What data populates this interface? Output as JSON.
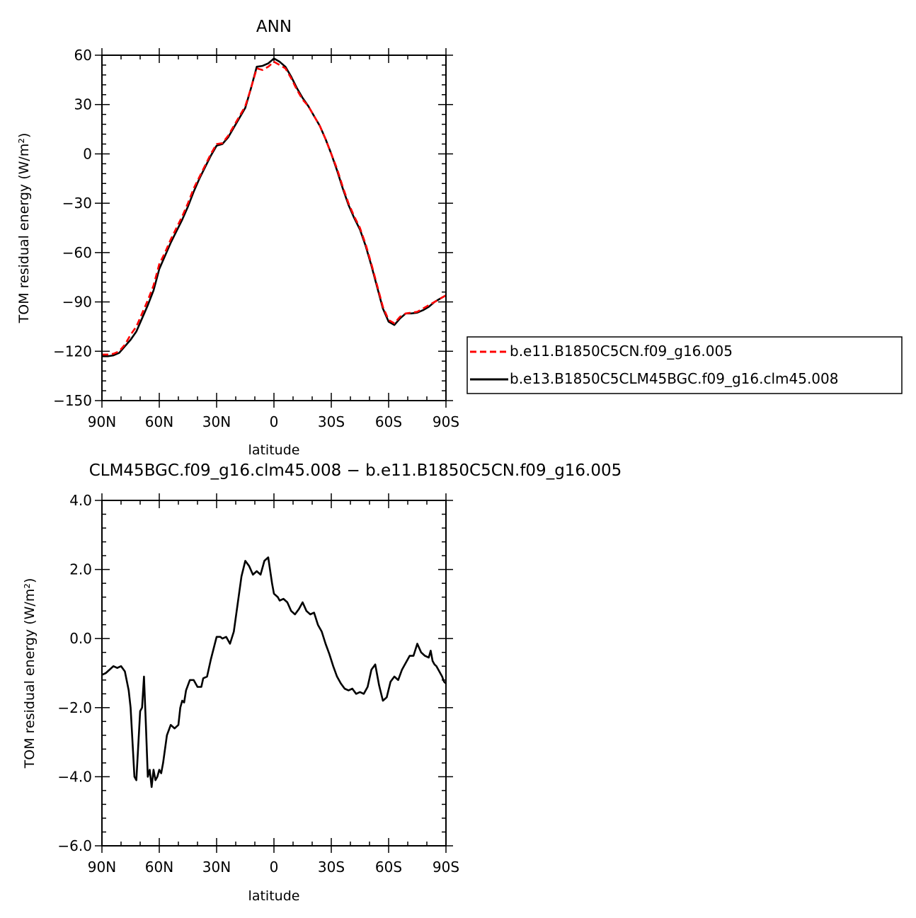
{
  "chart_data": [
    {
      "type": "line",
      "title": "ANN",
      "xlabel": "latitude",
      "ylabel": "TOM residual energy (W/m²)",
      "ylim": [
        -150,
        60
      ],
      "yticks": [
        "60",
        "30",
        "0",
        "−30",
        "−60",
        "−90",
        "−120",
        "−150"
      ],
      "ytick_values": [
        60,
        30,
        0,
        -30,
        -60,
        -90,
        -120,
        -150
      ],
      "xlim": [
        90,
        -90
      ],
      "xticks": [
        "90N",
        "60N",
        "30N",
        "0",
        "30S",
        "60S",
        "90S"
      ],
      "xtick_values": [
        90,
        60,
        30,
        0,
        -30,
        -60,
        -90
      ],
      "legend": [
        {
          "label": "b.e11.B1850C5CN.f09_g16.005",
          "color": "#ff0000",
          "dash": true
        },
        {
          "label": "b.e13.B1850C5CLM45BGC.f09_g16.clm45.008",
          "color": "#000000",
          "dash": false
        }
      ],
      "x": [
        90,
        87,
        84,
        81,
        78,
        75,
        72,
        69,
        66,
        63,
        60,
        57,
        54,
        51,
        48,
        45,
        42,
        39,
        36,
        33,
        30,
        27,
        24,
        21,
        18,
        15,
        12,
        9,
        6,
        3,
        0,
        -3,
        -6,
        -9,
        -12,
        -15,
        -18,
        -21,
        -24,
        -27,
        -30,
        -33,
        -36,
        -39,
        -42,
        -45,
        -48,
        -51,
        -54,
        -57,
        -60,
        -63,
        -66,
        -69,
        -72,
        -75,
        -78,
        -81,
        -84,
        -87,
        -90
      ],
      "series": [
        {
          "name": "b.e11.B1850C5CN.f09_g16.005",
          "color": "#ff0000",
          "dash": true,
          "values": [
            -122,
            -122,
            -121.5,
            -120,
            -116,
            -110,
            -105,
            -97,
            -89,
            -80,
            -67,
            -60,
            -52,
            -45,
            -38,
            -30,
            -21,
            -14,
            -7,
            0,
            6,
            6.5,
            11,
            17,
            23,
            29,
            40,
            52,
            51,
            53,
            56,
            54,
            52,
            46,
            39,
            33,
            29,
            23,
            17,
            9,
            0,
            -9,
            -20,
            -30,
            -38,
            -45,
            -55,
            -67,
            -80,
            -93,
            -101,
            -103,
            -99,
            -97,
            -96.5,
            -96,
            -94,
            -92,
            -90,
            -88,
            -86
          ]
        },
        {
          "name": "b.e13.B1850C5CLM45BGC.f09_g16.clm45.008",
          "color": "#000000",
          "dash": false,
          "values": [
            -123,
            -123,
            -122.5,
            -121,
            -117,
            -113,
            -108,
            -100,
            -92,
            -83,
            -70,
            -62,
            -54,
            -47,
            -40,
            -32,
            -23,
            -15,
            -8,
            -1,
            5,
            6,
            10,
            16,
            22,
            28,
            40,
            53,
            53.5,
            55,
            58,
            56,
            53,
            47,
            40,
            34,
            29,
            23,
            17,
            9,
            0,
            -10,
            -21,
            -31,
            -39,
            -46,
            -56,
            -68,
            -81,
            -94,
            -102,
            -104,
            -100,
            -97,
            -97,
            -96.5,
            -95,
            -93,
            -90,
            -88,
            -86
          ]
        }
      ]
    },
    {
      "type": "line",
      "title": "CLM45BGC.f09_g16.clm45.008 − b.e11.B1850C5CN.f09_g16.005",
      "xlabel": "latitude",
      "ylabel": "TOM residual energy (W/m²)",
      "ylim": [
        -6.0,
        4.0
      ],
      "yticks": [
        "4.0",
        "2.0",
        "0.0",
        "−2.0",
        "−4.0",
        "−6.0"
      ],
      "ytick_values": [
        4,
        2,
        0,
        -2,
        -4,
        -6
      ],
      "xlim": [
        90,
        -90
      ],
      "xticks": [
        "90N",
        "60N",
        "30N",
        "0",
        "30S",
        "60S",
        "90S"
      ],
      "xtick_values": [
        90,
        60,
        30,
        0,
        -30,
        -60,
        -90
      ],
      "x": [
        90,
        88,
        86,
        84,
        82,
        80,
        78,
        76,
        75,
        73,
        72,
        70,
        69,
        68,
        67,
        66,
        65,
        64,
        63,
        62,
        61,
        60,
        59,
        58,
        56,
        54,
        52,
        50,
        49,
        48,
        47,
        46,
        44,
        42,
        40,
        38,
        37,
        35,
        33,
        30,
        28,
        27,
        25,
        23,
        21,
        19,
        17,
        15,
        13,
        11,
        9,
        7,
        5,
        3,
        1,
        0,
        -2,
        -3,
        -5,
        -7,
        -9,
        -11,
        -13,
        -15,
        -17,
        -19,
        -21,
        -23,
        -25,
        -27,
        -29,
        -31,
        -33,
        -35,
        -37,
        -39,
        -41,
        -43,
        -45,
        -47,
        -49,
        -51,
        -53,
        -55,
        -57,
        -59,
        -61,
        -63,
        -65,
        -67,
        -69,
        -71,
        -73,
        -75,
        -77,
        -79,
        -81,
        -82,
        -83,
        -84,
        -85,
        -86,
        -87,
        -88,
        -89,
        -90
      ],
      "series": [
        {
          "name": "",
          "color": "#000000",
          "dash": false,
          "values": [
            -1.05,
            -1.0,
            -0.9,
            -0.8,
            -0.85,
            -0.8,
            -0.95,
            -1.5,
            -2.0,
            -4.0,
            -4.1,
            -2.1,
            -2.0,
            -1.1,
            -2.5,
            -4.0,
            -3.8,
            -4.3,
            -3.8,
            -4.1,
            -4.0,
            -3.8,
            -3.9,
            -3.6,
            -2.8,
            -2.5,
            -2.6,
            -2.5,
            -2.0,
            -1.8,
            -1.85,
            -1.5,
            -1.2,
            -1.2,
            -1.4,
            -1.4,
            -1.15,
            -1.1,
            -0.6,
            0.05,
            0.05,
            0.0,
            0.05,
            -0.15,
            0.2,
            1.0,
            1.8,
            2.25,
            2.1,
            1.85,
            1.95,
            1.85,
            2.25,
            2.35,
            1.6,
            1.3,
            1.2,
            1.1,
            1.15,
            1.05,
            0.8,
            0.7,
            0.85,
            1.05,
            0.8,
            0.7,
            0.75,
            0.4,
            0.2,
            -0.15,
            -0.45,
            -0.8,
            -1.1,
            -1.3,
            -1.45,
            -1.5,
            -1.45,
            -1.6,
            -1.55,
            -1.6,
            -1.4,
            -0.9,
            -0.75,
            -1.35,
            -1.8,
            -1.7,
            -1.25,
            -1.1,
            -1.2,
            -0.9,
            -0.7,
            -0.5,
            -0.5,
            -0.15,
            -0.4,
            -0.5,
            -0.55,
            -0.35,
            -0.65,
            -0.75,
            -0.8,
            -0.9,
            -1.0,
            -1.1,
            -1.25,
            -1.3
          ]
        }
      ]
    }
  ]
}
